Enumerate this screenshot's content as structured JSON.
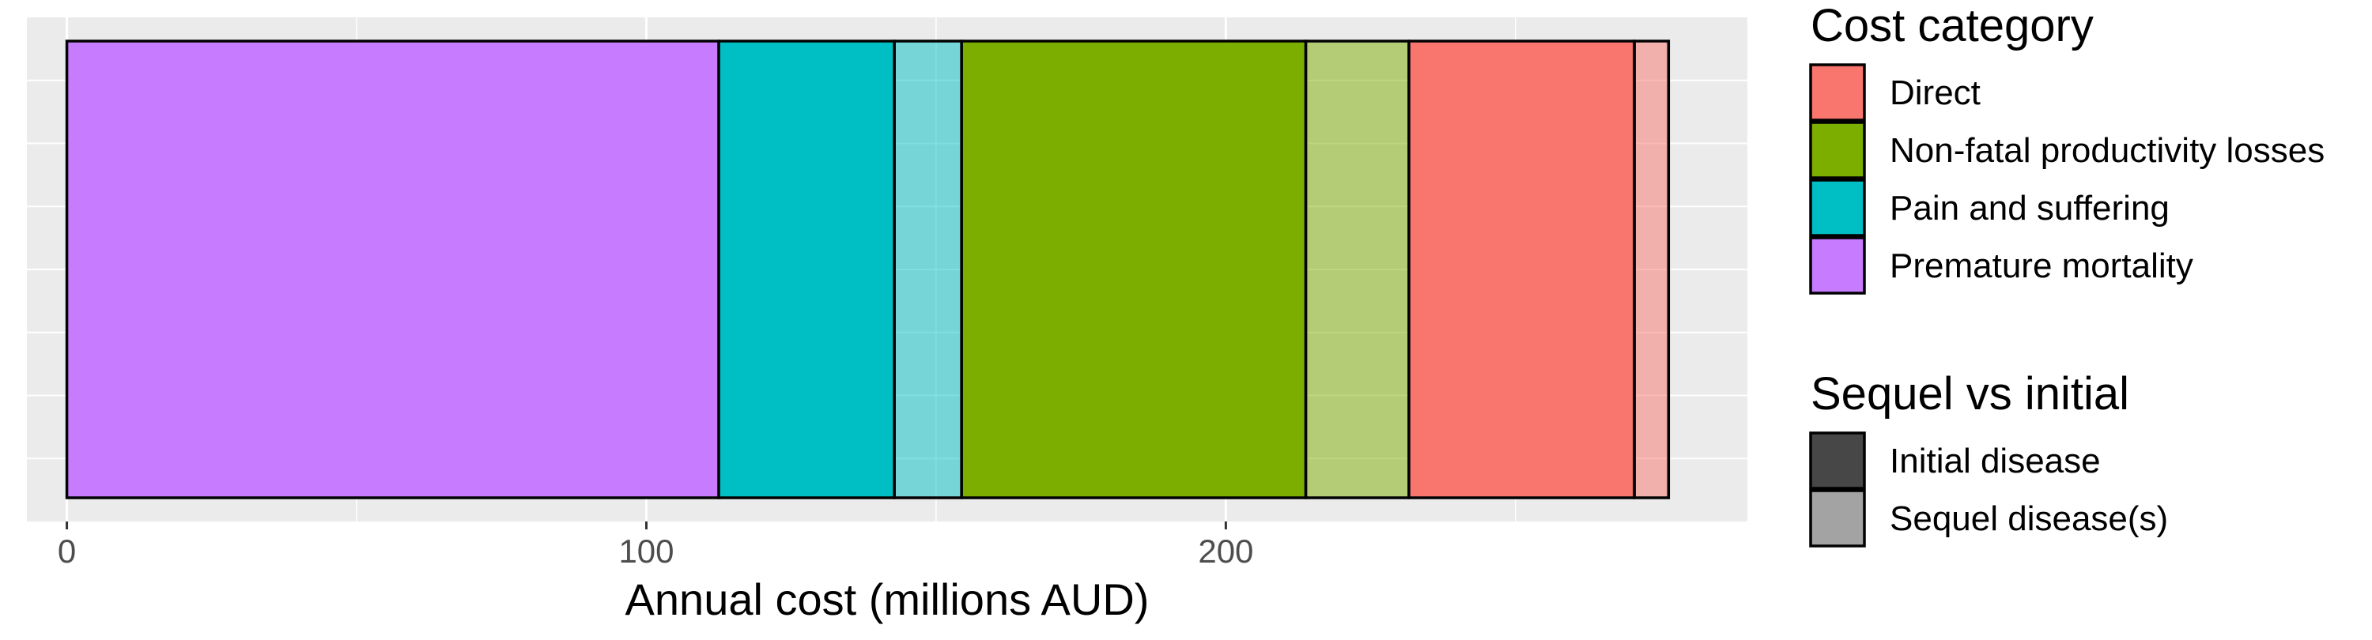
{
  "chart_data": {
    "type": "bar",
    "orientation": "horizontal",
    "stacked": true,
    "xlabel": "Annual cost (millions AUD)",
    "ylabel": "",
    "xlim": [
      -6.9,
      290
    ],
    "x_ticks": [
      0,
      100,
      200
    ],
    "x_minor_gridlines": [
      50,
      150,
      250
    ],
    "grid": true,
    "segments": [
      {
        "category": "Premature mortality",
        "sequel": "Initial disease",
        "value": 112.5
      },
      {
        "category": "Pain and suffering",
        "sequel": "Initial disease",
        "value": 30.3
      },
      {
        "category": "Pain and suffering",
        "sequel": "Sequel disease(s)",
        "value": 11.6
      },
      {
        "category": "Non-fatal productivity losses",
        "sequel": "Initial disease",
        "value": 59.4
      },
      {
        "category": "Non-fatal productivity losses",
        "sequel": "Sequel disease(s)",
        "value": 17.8
      },
      {
        "category": "Direct",
        "sequel": "Initial disease",
        "value": 38.9
      },
      {
        "category": "Direct",
        "sequel": "Sequel disease(s)",
        "value": 5.9
      }
    ],
    "legends": [
      {
        "title": "Cost category",
        "items": [
          {
            "label": "Direct",
            "color": "#F8766D"
          },
          {
            "label": "Non-fatal productivity losses",
            "color": "#7CAE00"
          },
          {
            "label": "Pain and suffering",
            "color": "#00BFC4"
          },
          {
            "label": "Premature mortality",
            "color": "#C77CFF"
          }
        ]
      },
      {
        "title": "Sequel vs initial",
        "items": [
          {
            "label": "Initial disease",
            "color": "#474747"
          },
          {
            "label": "Sequel disease(s)",
            "color": "#a3a3a3"
          }
        ]
      }
    ],
    "legend_position": "right",
    "alpha": {
      "Initial disease": 1.0,
      "Sequel disease(s)": 0.5
    },
    "panel_background": "#EBEBEB"
  }
}
